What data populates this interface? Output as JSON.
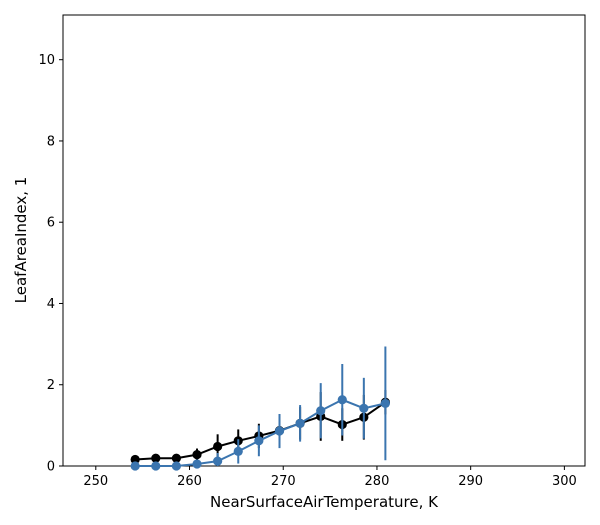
{
  "chart_data": {
    "type": "line",
    "xlabel": "NearSurfaceAirTemperature,  K",
    "ylabel": "LeafAreaIndex,  1",
    "xlim": [
      246.5,
      302.2
    ],
    "ylim": [
      0,
      11.1
    ],
    "xticks": [
      250,
      260,
      270,
      280,
      290,
      300
    ],
    "yticks": [
      0,
      2,
      4,
      6,
      8,
      10
    ],
    "grid": false,
    "series": [
      {
        "color": "#000000",
        "x": [
          254.2,
          256.4,
          258.6,
          260.8,
          263.0,
          265.2,
          267.4,
          269.6,
          271.8,
          274.0,
          276.3,
          278.6,
          280.9
        ],
        "y": [
          0.16,
          0.19,
          0.19,
          0.28,
          0.48,
          0.62,
          0.74,
          0.87,
          1.05,
          1.22,
          1.02,
          1.2,
          1.57
        ],
        "err": [
          0.03,
          0.04,
          0.05,
          0.15,
          0.3,
          0.28,
          0.3,
          0.4,
          0.4,
          0.6,
          0.4,
          0.55,
          0.3
        ]
      },
      {
        "color": "#3b75af",
        "x": [
          254.2,
          256.4,
          258.6,
          260.8,
          263.0,
          265.2,
          267.4,
          269.6,
          271.8,
          274.0,
          276.3,
          278.6,
          280.9
        ],
        "y": [
          0.0,
          0.0,
          0.0,
          0.05,
          0.12,
          0.36,
          0.62,
          0.86,
          1.05,
          1.36,
          1.63,
          1.42,
          1.54
        ],
        "err": [
          0.01,
          0.02,
          0.03,
          0.1,
          0.2,
          0.3,
          0.38,
          0.42,
          0.45,
          0.68,
          0.88,
          0.75,
          1.4
        ]
      }
    ]
  }
}
